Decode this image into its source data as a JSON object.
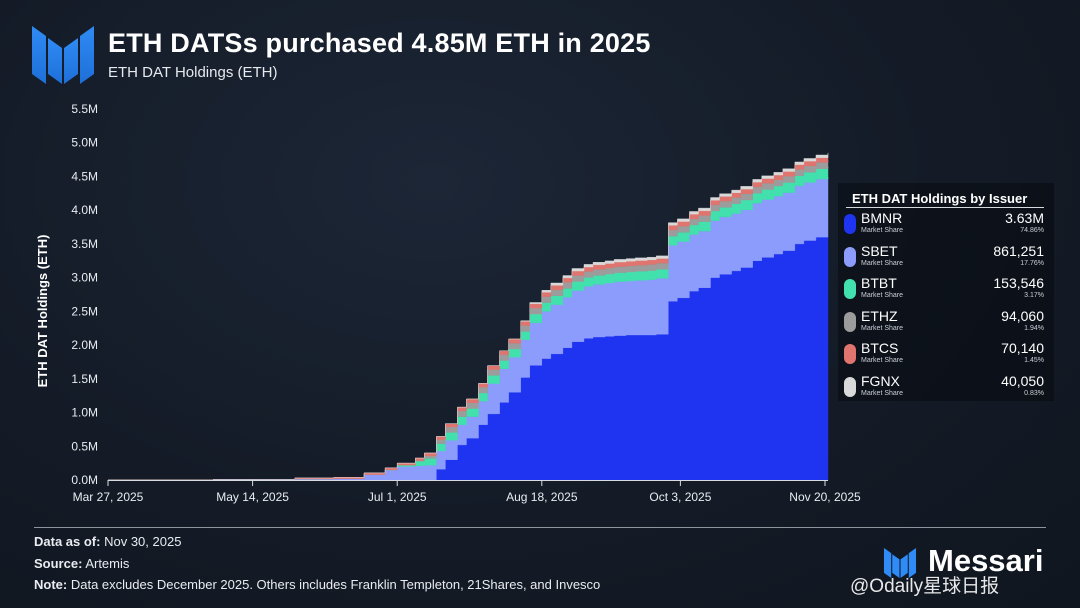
{
  "header": {
    "title": "ETH DATSs purchased 4.85M ETH in 2025",
    "subtitle": "ETH DAT Holdings (ETH)"
  },
  "chart_data": {
    "type": "area",
    "title": "ETH DATSs purchased 4.85M ETH in 2025",
    "subtitle": "ETH DAT Holdings (ETH)",
    "xlabel": "",
    "ylabel": "ETH DAT Holdings (ETH)",
    "ylim": [
      0,
      5500000
    ],
    "yticks": [
      {
        "value": 0,
        "label": "0.0M"
      },
      {
        "value": 500000,
        "label": "0.5M"
      },
      {
        "value": 1000000,
        "label": "1.0M"
      },
      {
        "value": 1500000,
        "label": "1.5M"
      },
      {
        "value": 2000000,
        "label": "2.0M"
      },
      {
        "value": 2500000,
        "label": "2.5M"
      },
      {
        "value": 3000000,
        "label": "3.0M"
      },
      {
        "value": 3500000,
        "label": "3.5M"
      },
      {
        "value": 4000000,
        "label": "4.0M"
      },
      {
        "value": 4500000,
        "label": "4.5M"
      },
      {
        "value": 5000000,
        "label": "5.0M"
      },
      {
        "value": 5500000,
        "label": "5.5M"
      }
    ],
    "xlim": [
      "2025-03-27",
      "2025-11-21"
    ],
    "xticks": [
      "Mar 27, 2025",
      "May 14, 2025",
      "Jul 1, 2025",
      "Aug 18, 2025",
      "Oct 3, 2025",
      "Nov 20, 2025"
    ],
    "xtick_dates": [
      "2025-03-27",
      "2025-05-14",
      "2025-07-01",
      "2025-08-18",
      "2025-10-03",
      "2025-11-20"
    ],
    "grid": false,
    "stacked": true,
    "step": true,
    "legend_position": "right",
    "dates": [
      "2025-03-27",
      "2025-05-01",
      "2025-05-28",
      "2025-06-10",
      "2025-06-20",
      "2025-06-27",
      "2025-07-01",
      "2025-07-07",
      "2025-07-10",
      "2025-07-14",
      "2025-07-17",
      "2025-07-21",
      "2025-07-24",
      "2025-07-28",
      "2025-07-31",
      "2025-08-04",
      "2025-08-07",
      "2025-08-11",
      "2025-08-14",
      "2025-08-18",
      "2025-08-21",
      "2025-08-25",
      "2025-08-28",
      "2025-09-01",
      "2025-09-04",
      "2025-09-08",
      "2025-09-11",
      "2025-09-15",
      "2025-09-18",
      "2025-09-22",
      "2025-09-25",
      "2025-09-29",
      "2025-10-02",
      "2025-10-06",
      "2025-10-09",
      "2025-10-13",
      "2025-10-16",
      "2025-10-20",
      "2025-10-23",
      "2025-10-27",
      "2025-10-30",
      "2025-11-03",
      "2025-11-06",
      "2025-11-10",
      "2025-11-13",
      "2025-11-17",
      "2025-11-21"
    ],
    "series": [
      {
        "name": "BMNR",
        "color": "#1f34f0",
        "values": [
          0,
          0,
          0,
          0,
          0,
          0,
          0,
          0,
          0,
          160000,
          300000,
          520000,
          620000,
          820000,
          980000,
          1150000,
          1300000,
          1520000,
          1700000,
          1800000,
          1870000,
          1960000,
          2050000,
          2100000,
          2120000,
          2130000,
          2140000,
          2150000,
          2150000,
          2150000,
          2160000,
          2650000,
          2700000,
          2800000,
          2850000,
          3000000,
          3050000,
          3100000,
          3150000,
          3250000,
          3300000,
          3350000,
          3400000,
          3500000,
          3550000,
          3600000,
          3630000
        ]
      },
      {
        "name": "SBET",
        "color": "#8b9cfd",
        "values": [
          0,
          10000,
          15000,
          20000,
          80000,
          150000,
          200000,
          210000,
          220000,
          270000,
          290000,
          300000,
          320000,
          350000,
          450000,
          500000,
          520000,
          560000,
          630000,
          700000,
          730000,
          750000,
          760000,
          770000,
          780000,
          790000,
          800000,
          800000,
          810000,
          820000,
          830000,
          830000,
          835000,
          840000,
          840000,
          845000,
          850000,
          850000,
          855000,
          855000,
          858000,
          858000,
          860000,
          860000,
          861000,
          861000,
          861251
        ]
      },
      {
        "name": "BTBT",
        "color": "#42e0ac",
        "values": [
          0,
          0,
          0,
          0,
          0,
          0,
          20000,
          70000,
          100000,
          110000,
          115000,
          120000,
          120000,
          120000,
          121000,
          121000,
          122000,
          122000,
          130000,
          130000,
          131000,
          131000,
          132000,
          132000,
          133000,
          133000,
          134000,
          134000,
          135000,
          135000,
          135000,
          136000,
          136000,
          140000,
          140000,
          142000,
          142000,
          145000,
          145000,
          148000,
          148000,
          150000,
          150000,
          151000,
          152000,
          153000,
          153546
        ]
      },
      {
        "name": "ETHZ",
        "color": "#9c9c9c",
        "values": [
          0,
          0,
          0,
          0,
          0,
          0,
          0,
          10000,
          40000,
          60000,
          80000,
          85000,
          86000,
          86000,
          87000,
          87000,
          88000,
          88000,
          89000,
          89000,
          90000,
          90000,
          90000,
          90000,
          90000,
          90000,
          90000,
          91000,
          91000,
          91000,
          91000,
          91000,
          92000,
          92000,
          92000,
          92000,
          93000,
          93000,
          93000,
          93000,
          93000,
          93000,
          94000,
          94000,
          94000,
          94000,
          94060
        ]
      },
      {
        "name": "BTCS",
        "color": "#e0756f",
        "values": [
          0,
          0,
          15000,
          20000,
          25000,
          30000,
          30000,
          35000,
          40000,
          45000,
          50000,
          55000,
          55000,
          56000,
          57000,
          58000,
          60000,
          62000,
          63000,
          64000,
          65000,
          65000,
          66000,
          66000,
          67000,
          67000,
          67000,
          68000,
          68000,
          68000,
          68000,
          69000,
          69000,
          69000,
          69000,
          69000,
          69000,
          70000,
          70000,
          70000,
          70000,
          70000,
          70000,
          70000,
          70000,
          70140,
          70140
        ]
      },
      {
        "name": "FGNX",
        "color": "#d9d9d9",
        "values": [
          0,
          0,
          0,
          0,
          0,
          0,
          0,
          0,
          0,
          0,
          0,
          0,
          0,
          0,
          0,
          0,
          0,
          10000,
          20000,
          30000,
          35000,
          35000,
          38000,
          38000,
          38000,
          38000,
          39000,
          39000,
          39000,
          39000,
          39000,
          39000,
          39000,
          40000,
          40000,
          40000,
          40000,
          40000,
          40000,
          40000,
          40000,
          40000,
          40000,
          40050,
          40050,
          40050,
          40050
        ]
      }
    ]
  },
  "legend": {
    "title": "ETH DAT Holdings by Issuer",
    "ms_label": "Market Share",
    "items": [
      {
        "name": "BMNR",
        "value": "3.63M",
        "share": "74.86%",
        "color": "#1f34f0"
      },
      {
        "name": "SBET",
        "value": "861,251",
        "share": "17.76%",
        "color": "#8b9cfd"
      },
      {
        "name": "BTBT",
        "value": "153,546",
        "share": "3.17%",
        "color": "#42e0ac"
      },
      {
        "name": "ETHZ",
        "value": "94,060",
        "share": "1.94%",
        "color": "#9c9c9c"
      },
      {
        "name": "BTCS",
        "value": "70,140",
        "share": "1.45%",
        "color": "#e0756f"
      },
      {
        "name": "FGNX",
        "value": "40,050",
        "share": "0.83%",
        "color": "#d9d9d9"
      }
    ]
  },
  "footer": {
    "data_as_of_label": "Data as of:",
    "data_as_of_value": "Nov 30, 2025",
    "source_label": "Source:",
    "source_value": "Artemis",
    "note_label": "Note:",
    "note_value": "Data excludes December 2025. Others includes Franklin Templeton, 21Shares, and Invesco"
  },
  "brand": {
    "name": "Messari",
    "logo_icon": "messari-logo-icon"
  },
  "watermark": "@Odaily星球日报",
  "colors": {
    "background": "#141b27",
    "accent": "#2a7df0"
  }
}
